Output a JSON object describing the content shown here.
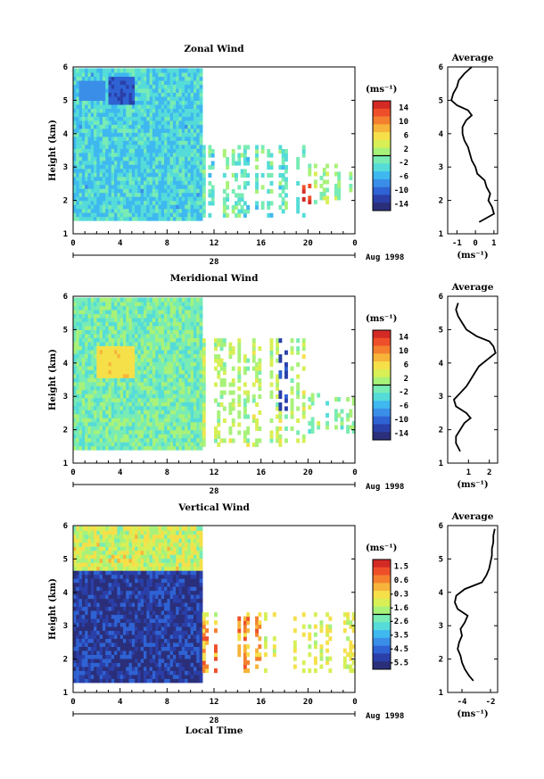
{
  "chart_data": [
    {
      "type": "heatmap",
      "title": "Zonal Wind",
      "ylabel": "Height (km)",
      "xlabel": "",
      "ylim": [
        1,
        6
      ],
      "xlim": [
        0,
        24
      ],
      "yticks": [
        "1",
        "2",
        "3",
        "4",
        "5",
        "6"
      ],
      "xticks": [
        "0",
        "4",
        "8",
        "12",
        "16",
        "20",
        "0"
      ],
      "date_label": "28",
      "date_right": "Aug 1998",
      "colorbar": {
        "unit": "(ms⁻¹)",
        "ticks": [
          "14",
          "10",
          "6",
          "2",
          "-2",
          "-6",
          "-10",
          "-14"
        ],
        "min": -16,
        "max": 16
      },
      "coverage": [
        {
          "x0": 0,
          "x1": 11,
          "y0": 1.4,
          "y1": 5.9
        },
        {
          "x0": 11,
          "x1": 20,
          "y0": 1.5,
          "y1": 3.6
        },
        {
          "x0": 20,
          "x1": 24,
          "y0": 1.9,
          "y1": 3.0
        }
      ],
      "features": [
        {
          "x0": 19.5,
          "x1": 20.2,
          "y0": 1.8,
          "y1": 2.5,
          "value": 14
        },
        {
          "x0": 3,
          "x1": 5,
          "y0": 4.8,
          "y1": 5.7,
          "value": -11
        },
        {
          "x0": 0.5,
          "x1": 2.5,
          "y0": 5.0,
          "y1": 5.6,
          "value": -8
        }
      ],
      "profile": {
        "title": "Average",
        "xlabel": "(ms⁻¹)",
        "xlim": [
          -1.5,
          1.2
        ],
        "xticks": [
          "-1",
          "0",
          "1"
        ],
        "yticks": [
          "1",
          "2",
          "3",
          "4",
          "5",
          "6"
        ],
        "height": [
          1.35,
          1.6,
          1.8,
          2.0,
          2.2,
          2.4,
          2.6,
          2.8,
          3.0,
          3.2,
          3.4,
          3.6,
          3.8,
          4.0,
          4.2,
          4.4,
          4.55,
          4.7,
          4.85,
          5.0,
          5.2,
          5.4,
          5.6,
          5.8,
          6.0
        ],
        "value": [
          0.2,
          1.0,
          0.9,
          0.7,
          0.8,
          0.6,
          0.5,
          0.1,
          0.0,
          -0.2,
          -0.3,
          -0.4,
          -0.6,
          -0.7,
          -0.7,
          -0.5,
          -0.2,
          -0.4,
          -1.0,
          -1.3,
          -1.2,
          -1.0,
          -0.9,
          -0.6,
          -0.2
        ]
      }
    },
    {
      "type": "heatmap",
      "title": "Meridional Wind",
      "ylabel": "Height (km)",
      "xlabel": "",
      "ylim": [
        1,
        6
      ],
      "xlim": [
        0,
        24
      ],
      "yticks": [
        "1",
        "2",
        "3",
        "4",
        "5",
        "6"
      ],
      "xticks": [
        "0",
        "4",
        "8",
        "12",
        "16",
        "20",
        "0"
      ],
      "date_label": "28",
      "date_right": "Aug 1998",
      "colorbar": {
        "unit": "(ms⁻¹)",
        "ticks": [
          "14",
          "10",
          "6",
          "2",
          "-2",
          "-6",
          "-10",
          "-14"
        ],
        "min": -16,
        "max": 16
      },
      "coverage": [
        {
          "x0": 0,
          "x1": 11,
          "y0": 1.4,
          "y1": 5.9
        },
        {
          "x0": 11,
          "x1": 20,
          "y0": 1.5,
          "y1": 4.7
        },
        {
          "x0": 20,
          "x1": 24,
          "y0": 1.9,
          "y1": 3.0
        }
      ],
      "features": [
        {
          "x0": 17.5,
          "x1": 18.2,
          "y0": 2.5,
          "y1": 5.2,
          "value": -12
        },
        {
          "x0": 2,
          "x1": 5,
          "y0": 3.5,
          "y1": 4.5,
          "value": 6
        }
      ],
      "profile": {
        "title": "Average",
        "xlabel": "(ms⁻¹)",
        "xlim": [
          0,
          2.4
        ],
        "xticks": [
          "1",
          "2"
        ],
        "yticks": [
          "1",
          "2",
          "3",
          "4",
          "5",
          "6"
        ],
        "height": [
          1.35,
          1.6,
          1.8,
          2.0,
          2.2,
          2.35,
          2.5,
          2.7,
          2.9,
          3.1,
          3.3,
          3.5,
          3.7,
          3.9,
          4.1,
          4.3,
          4.5,
          4.65,
          4.8,
          5.0,
          5.2,
          5.4,
          5.6,
          5.8
        ],
        "value": [
          0.6,
          0.4,
          0.4,
          0.6,
          0.8,
          1.1,
          0.9,
          0.4,
          0.3,
          0.6,
          0.9,
          1.1,
          1.3,
          1.5,
          1.9,
          2.3,
          2.2,
          2.0,
          1.4,
          0.9,
          0.7,
          0.5,
          0.4,
          0.5
        ]
      }
    },
    {
      "type": "heatmap",
      "title": "Vertical Wind",
      "ylabel": "Height (km)",
      "xlabel": "Local Time",
      "ylim": [
        1,
        6
      ],
      "xlim": [
        0,
        24
      ],
      "yticks": [
        "1",
        "2",
        "3",
        "4",
        "5",
        "6"
      ],
      "xticks": [
        "0",
        "4",
        "8",
        "12",
        "16",
        "20",
        "0"
      ],
      "date_label": "28",
      "date_right": "Aug 1998",
      "colorbar": {
        "unit": "(ms⁻¹)",
        "ticks": [
          "1.5",
          "0.6",
          "-0.3",
          "-1.6",
          "-2.6",
          "-3.5",
          "-4.5",
          "-5.5"
        ],
        "min": -6,
        "max": 2
      },
      "coverage": [
        {
          "x0": 0,
          "x1": 11,
          "y0": 1.3,
          "y1": 5.9
        },
        {
          "x0": 11,
          "x1": 24,
          "y0": 1.6,
          "y1": 3.4
        }
      ],
      "features": [
        {
          "x0": 0,
          "x1": 10.5,
          "y0": 1.3,
          "y1": 4.5,
          "value": -5.4
        },
        {
          "x0": 0,
          "x1": 11,
          "y0": 4.6,
          "y1": 5.9,
          "value": -1.2
        },
        {
          "x0": 11,
          "x1": 16,
          "y0": 1.6,
          "y1": 3.2,
          "value": 0.3
        }
      ],
      "profile": {
        "title": "Average",
        "xlabel": "(ms⁻¹)",
        "xlim": [
          -5,
          -1.5
        ],
        "xticks": [
          "-4",
          "-2"
        ],
        "yticks": [
          "1",
          "2",
          "3",
          "4",
          "5",
          "6"
        ],
        "height": [
          1.35,
          1.5,
          1.7,
          1.9,
          2.1,
          2.3,
          2.5,
          2.7,
          2.9,
          3.1,
          3.3,
          3.5,
          3.7,
          3.9,
          4.1,
          4.3,
          4.5,
          4.7,
          4.9,
          5.1,
          5.3,
          5.5,
          5.7,
          5.9
        ],
        "value": [
          -3.2,
          -3.5,
          -3.8,
          -4.0,
          -4.1,
          -4.3,
          -4.2,
          -4.0,
          -4.1,
          -3.8,
          -3.6,
          -4.3,
          -4.5,
          -4.4,
          -3.8,
          -2.6,
          -2.3,
          -2.1,
          -2.0,
          -1.9,
          -1.9,
          -1.8,
          -1.8,
          -1.7
        ]
      }
    }
  ],
  "colors": {
    "colormap": [
      "#2b2f7a",
      "#2a3fa8",
      "#2f63d4",
      "#3a8ee8",
      "#3fb8f0",
      "#55dcd8",
      "#78ecb4",
      "#a8f27a",
      "#d8ef56",
      "#f5e04a",
      "#f7b43a",
      "#f4802f",
      "#ee4f2a",
      "#d42a26"
    ]
  }
}
